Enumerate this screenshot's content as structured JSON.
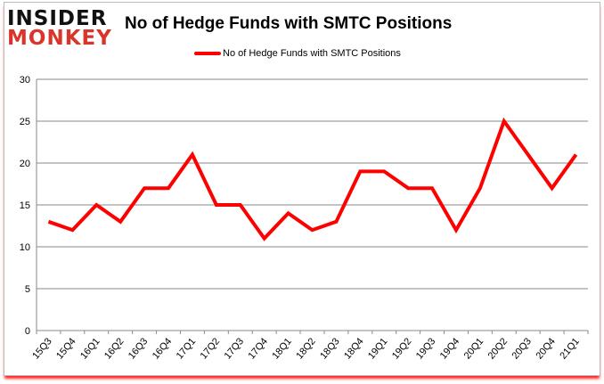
{
  "logo": {
    "line1": "INSIDER",
    "line2": "MONKEY"
  },
  "chart_data": {
    "type": "line",
    "title": "No of Hedge Funds with SMTC Positions",
    "xlabel": "",
    "ylabel": "",
    "categories": [
      "15Q3",
      "15Q4",
      "16Q1",
      "16Q2",
      "16Q3",
      "16Q4",
      "17Q1",
      "17Q2",
      "17Q3",
      "17Q4",
      "18Q1",
      "18Q2",
      "18Q3",
      "18Q4",
      "19Q1",
      "19Q2",
      "19Q3",
      "19Q4",
      "20Q1",
      "20Q2",
      "20Q3",
      "20Q4",
      "21Q1"
    ],
    "series": [
      {
        "name": "No of Hedge Funds with SMTC Positions",
        "color": "#ff0000",
        "values": [
          13,
          12,
          15,
          13,
          17,
          17,
          21,
          15,
          15,
          11,
          14,
          12,
          13,
          19,
          19,
          17,
          17,
          12,
          17,
          25,
          21,
          17,
          21
        ]
      }
    ],
    "ylim": [
      0,
      30
    ],
    "yticks": [
      0,
      5,
      10,
      15,
      20,
      25,
      30
    ],
    "grid": true,
    "legend_position": "top"
  }
}
